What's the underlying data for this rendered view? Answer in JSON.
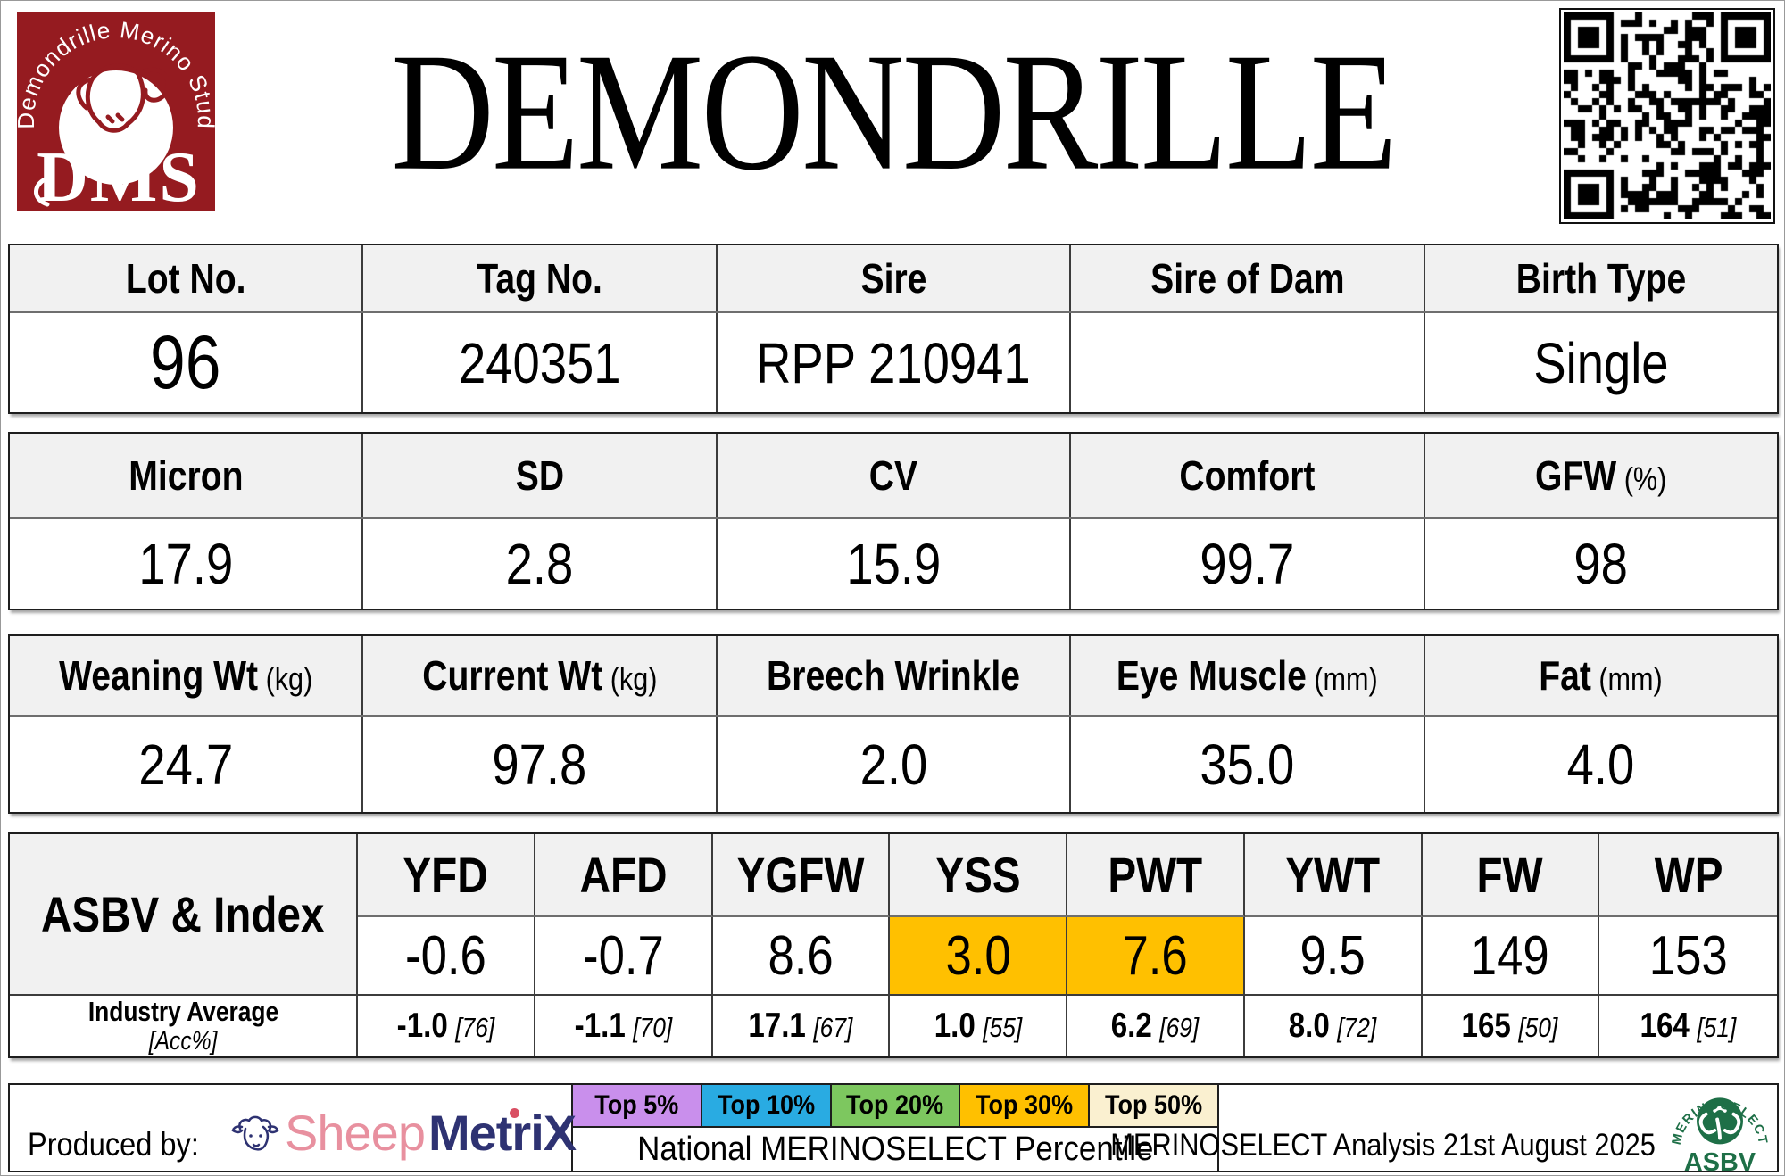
{
  "header": {
    "title": "DEMONDRILLE",
    "logo_arc_text": "Demondrille Merino Stud",
    "logo_initials": "DMS"
  },
  "info_table": {
    "headers": [
      "Lot No.",
      "Tag No.",
      "Sire",
      "Sire of Dam",
      "Birth Type"
    ],
    "values": [
      "96",
      "240351",
      "RPP 210941",
      "",
      "Single"
    ]
  },
  "wool_table": {
    "headers": [
      {
        "label": "Micron",
        "unit": ""
      },
      {
        "label": "SD",
        "unit": ""
      },
      {
        "label": "CV",
        "unit": ""
      },
      {
        "label": "Comfort",
        "unit": ""
      },
      {
        "label": "GFW",
        "unit": "(%)"
      }
    ],
    "values": [
      "17.9",
      "2.8",
      "15.9",
      "99.7",
      "98"
    ]
  },
  "body_table": {
    "headers": [
      {
        "label": "Weaning Wt",
        "unit": "(kg)"
      },
      {
        "label": "Current Wt",
        "unit": "(kg)"
      },
      {
        "label": "Breech Wrinkle",
        "unit": ""
      },
      {
        "label": "Eye Muscle",
        "unit": "(mm)"
      },
      {
        "label": "Fat",
        "unit": "(mm)"
      }
    ],
    "values": [
      "24.7",
      "97.8",
      "2.0",
      "35.0",
      "4.0"
    ]
  },
  "asbv_table": {
    "row_label": "ASBV & Index",
    "columns": [
      "YFD",
      "AFD",
      "YGFW",
      "YSS",
      "PWT",
      "YWT",
      "FW",
      "WP"
    ],
    "values": [
      "-0.6",
      "-0.7",
      "8.6",
      "3.0",
      "7.6",
      "9.5",
      "149",
      "153"
    ],
    "highlight": [
      false,
      false,
      false,
      true,
      true,
      false,
      false,
      false
    ],
    "industry_label": "Industry Average",
    "industry_sub": "[Acc%]",
    "industry": [
      {
        "value": "-1.0",
        "acc": "[76]"
      },
      {
        "value": "-1.1",
        "acc": "[70]"
      },
      {
        "value": "17.1",
        "acc": "[67]"
      },
      {
        "value": "1.0",
        "acc": "[55]"
      },
      {
        "value": "6.2",
        "acc": "[69]"
      },
      {
        "value": "8.0",
        "acc": "[72]"
      },
      {
        "value": "165",
        "acc": "[50]"
      },
      {
        "value": "164",
        "acc": "[51]"
      }
    ]
  },
  "footer": {
    "produced_by_label": "Produced by:",
    "brand": {
      "sheep": "Sheep",
      "metrix": "MetriX"
    },
    "percentiles": [
      {
        "label": "Top 5%",
        "color": "#C98FEC"
      },
      {
        "label": "Top 10%",
        "color": "#29ABE2"
      },
      {
        "label": "Top 20%",
        "color": "#7DC75F"
      },
      {
        "label": "Top 30%",
        "color": "#FFC000"
      },
      {
        "label": "Top 50%",
        "color": "#FAF0D0"
      }
    ],
    "percentile_caption": "National MERINOSELECT Percentile",
    "analysis": "MERINOSELECT Analysis 21st August 2025",
    "ms_logo": {
      "arc": "MERINOSELECT",
      "name": "ASBV"
    }
  },
  "colors": {
    "maroon": "#951B20",
    "header_bg": "#F1F1F1",
    "highlight": "#FFC000",
    "navy": "#2E3272",
    "pink": "#E8909F",
    "ms_green": "#1E6F47"
  }
}
